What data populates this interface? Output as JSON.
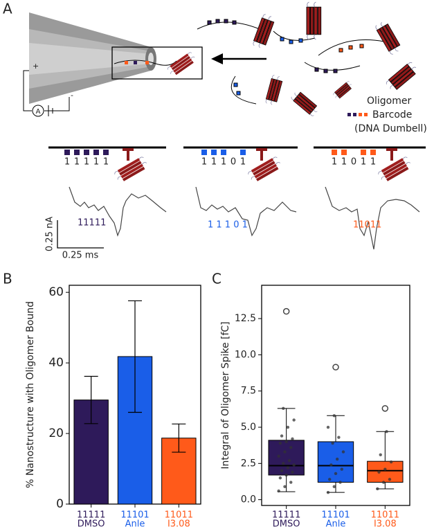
{
  "panel_a": {
    "label": "A",
    "plus": "+",
    "minus": "-",
    "ammeter": "A",
    "legend": {
      "title": "Oligomer",
      "barcode": "Barcode",
      "subtitle": "(DNA Dumbell)"
    },
    "barcodes": [
      {
        "digits": [
          "1",
          "1",
          "1",
          "1",
          "1"
        ],
        "trace_label": "11111",
        "color": "#2e1a5a"
      },
      {
        "digits": [
          "1",
          "1",
          "1",
          "0",
          "1"
        ],
        "trace_label": "1 1 1 0 1",
        "color": "#1a5ee8"
      },
      {
        "digits": [
          "1",
          "1",
          "0",
          "1",
          "1"
        ],
        "trace_label": "11011",
        "color": "#ff5a1a"
      }
    ],
    "scale": {
      "current": "0.25 nA",
      "time": "0.25 ms"
    }
  },
  "chart_data": [
    {
      "type": "bar",
      "panel_label": "B",
      "ylabel": "% Nanostructure with Oligomer Bound",
      "categories": [
        "11111",
        "11101",
        "11011"
      ],
      "subcategories": [
        "DMSO",
        "Anle",
        "I3.08"
      ],
      "colors": [
        "#2e1a5a",
        "#1a5ee8",
        "#ff5a1a"
      ],
      "values": [
        29.5,
        41.8,
        18.7
      ],
      "errors": [
        6.7,
        15.8,
        4.0
      ],
      "ylim": [
        0,
        62
      ],
      "yticks": [
        0,
        20,
        40,
        60
      ]
    },
    {
      "type": "box",
      "panel_label": "C",
      "ylabel": "Integral of Oligomer Spike [fC]",
      "categories": [
        "11111",
        "11101",
        "11011"
      ],
      "subcategories": [
        "DMSO",
        "Anle",
        "I3.08"
      ],
      "colors": [
        "#2e1a5a",
        "#1a5ee8",
        "#ff5a1a"
      ],
      "whislo": [
        0.55,
        0.5,
        0.75
      ],
      "q1": [
        1.7,
        1.2,
        1.2
      ],
      "median": [
        2.35,
        2.35,
        2.0
      ],
      "q3": [
        4.1,
        4.0,
        2.65
      ],
      "whishi": [
        6.3,
        5.8,
        4.7
      ],
      "fliers": [
        [
          13.0
        ],
        [
          9.15
        ],
        [
          6.3
        ]
      ],
      "points": [
        [
          0.6,
          0.9,
          1.2,
          1.5,
          1.7,
          1.9,
          2.0,
          2.2,
          2.4,
          2.5,
          2.7,
          3.0,
          3.3,
          3.6,
          3.9,
          4.0,
          4.2,
          4.4,
          5.0,
          5.5,
          6.3
        ],
        [
          0.5,
          0.9,
          1.2,
          1.4,
          1.8,
          2.1,
          2.4,
          2.8,
          3.3,
          3.9,
          4.3,
          5.0,
          5.8
        ],
        [
          0.75,
          1.2,
          1.4,
          1.9,
          2.1,
          2.6,
          3.1,
          4.7
        ]
      ],
      "ylim": [
        -0.4,
        14.8
      ],
      "yticks": [
        {
          "value": 0,
          "label": "0.0"
        },
        {
          "value": 2.5,
          "label": "2.5"
        },
        {
          "value": 5,
          "label": "5.0"
        },
        {
          "value": 7.5,
          "label": "7.5"
        },
        {
          "value": 10,
          "label": "10.0"
        },
        {
          "value": 12.5,
          "label": "12.5"
        }
      ]
    }
  ]
}
